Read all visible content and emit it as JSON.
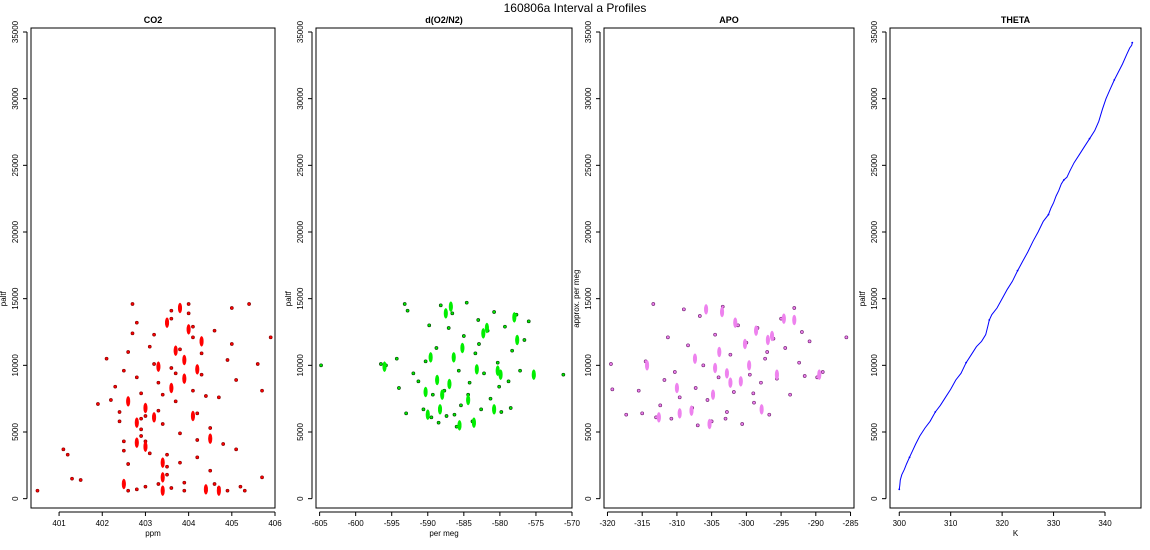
{
  "title": "160806a   Interval a Profiles",
  "chart_data": [
    {
      "type": "scatter",
      "title": "CO2",
      "xlabel": "ppm",
      "ylabel": "paltf",
      "xlim": [
        400.35,
        406.0
      ],
      "ylim": [
        -700,
        35300
      ],
      "xticks": [
        401,
        402,
        403,
        404,
        405,
        406
      ],
      "yticks": [
        0,
        5000,
        10000,
        15000,
        20000,
        25000,
        30000,
        35000
      ],
      "grid": false,
      "colors": {
        "fill": "#ff0000",
        "stroke": "#8b0000"
      },
      "points": [
        [
          400.5,
          600
        ],
        [
          401.1,
          3700
        ],
        [
          401.2,
          3300
        ],
        [
          401.3,
          1500
        ],
        [
          401.5,
          1400
        ],
        [
          401.9,
          7100
        ],
        [
          402.2,
          7400
        ],
        [
          402.1,
          10500
        ],
        [
          402.3,
          8400
        ],
        [
          402.4,
          6500
        ],
        [
          402.4,
          5800
        ],
        [
          402.5,
          4300
        ],
        [
          402.5,
          3600
        ],
        [
          402.6,
          2600
        ],
        [
          402.6,
          11000
        ],
        [
          402.7,
          12400
        ],
        [
          402.7,
          14600
        ],
        [
          402.8,
          13200
        ],
        [
          402.8,
          9100
        ],
        [
          402.9,
          7900
        ],
        [
          402.9,
          6000
        ],
        [
          402.9,
          4700
        ],
        [
          403.0,
          4300
        ],
        [
          403.1,
          3400
        ],
        [
          403.1,
          11400
        ],
        [
          403.2,
          10100
        ],
        [
          403.2,
          12300
        ],
        [
          403.3,
          8700
        ],
        [
          403.3,
          6600
        ],
        [
          403.4,
          5600
        ],
        [
          403.5,
          2400
        ],
        [
          403.5,
          1800
        ],
        [
          403.6,
          14100
        ],
        [
          403.6,
          13500
        ],
        [
          403.7,
          9400
        ],
        [
          403.7,
          7300
        ],
        [
          403.8,
          4900
        ],
        [
          403.8,
          2700
        ],
        [
          403.9,
          1200
        ],
        [
          403.9,
          600
        ],
        [
          404.0,
          14600
        ],
        [
          404.0,
          13900
        ],
        [
          404.1,
          12100
        ],
        [
          404.1,
          8100
        ],
        [
          404.2,
          6400
        ],
        [
          404.2,
          3100
        ],
        [
          404.3,
          10900
        ],
        [
          404.3,
          9300
        ],
        [
          404.4,
          7700
        ],
        [
          404.5,
          5300
        ],
        [
          404.5,
          2100
        ],
        [
          404.6,
          12600
        ],
        [
          404.6,
          1100
        ],
        [
          404.7,
          7600
        ],
        [
          404.7,
          800
        ],
        [
          404.8,
          4100
        ],
        [
          404.9,
          10400
        ],
        [
          405.0,
          14300
        ],
        [
          405.0,
          11600
        ],
        [
          405.1,
          8900
        ],
        [
          405.1,
          3700
        ],
        [
          405.3,
          600
        ],
        [
          405.4,
          14600
        ],
        [
          405.6,
          10100
        ],
        [
          405.7,
          8100
        ],
        [
          405.7,
          1600
        ],
        [
          405.9,
          12100
        ],
        [
          402.6,
          600
        ],
        [
          402.8,
          700
        ],
        [
          403.0,
          900
        ],
        [
          403.3,
          1100
        ],
        [
          403.6,
          800
        ],
        [
          404.4,
          600
        ],
        [
          404.9,
          600
        ],
        [
          405.2,
          900
        ],
        [
          402.9,
          5200
        ],
        [
          403.0,
          6200
        ],
        [
          403.4,
          7800
        ],
        [
          403.6,
          9800
        ],
        [
          403.8,
          11200
        ],
        [
          404.1,
          12900
        ],
        [
          403.5,
          3300
        ],
        [
          404.2,
          4400
        ],
        [
          402.5,
          9600
        ]
      ],
      "elongated_clusters": [
        [
          402.5,
          1100
        ],
        [
          402.6,
          7300
        ],
        [
          402.8,
          5700
        ],
        [
          402.8,
          4200
        ],
        [
          403.0,
          6800
        ],
        [
          403.0,
          3900
        ],
        [
          403.2,
          6100
        ],
        [
          403.3,
          9900
        ],
        [
          403.4,
          2700
        ],
        [
          403.4,
          1600
        ],
        [
          403.4,
          600
        ],
        [
          403.5,
          13200
        ],
        [
          403.6,
          8300
        ],
        [
          403.7,
          11100
        ],
        [
          403.8,
          14300
        ],
        [
          403.9,
          10400
        ],
        [
          403.9,
          9000
        ],
        [
          404.0,
          12700
        ],
        [
          404.1,
          6200
        ],
        [
          404.2,
          9700
        ],
        [
          404.3,
          11800
        ],
        [
          404.4,
          700
        ],
        [
          404.5,
          4500
        ],
        [
          404.7,
          600
        ]
      ]
    },
    {
      "type": "scatter",
      "title": "d(O2/N2)",
      "xlabel": "per meg",
      "ylabel": "paltf",
      "xlim": [
        -605.5,
        -570.0
      ],
      "ylim": [
        -700,
        35300
      ],
      "xticks": [
        -605,
        -600,
        -595,
        -590,
        -585,
        -580,
        -575,
        -570
      ],
      "yticks": [
        0,
        5000,
        10000,
        15000,
        20000,
        25000,
        30000,
        35000
      ],
      "grid": false,
      "colors": {
        "fill": "#00ee00",
        "stroke": "#004d00"
      },
      "points": [
        [
          -604.8,
          10000
        ],
        [
          -596.5,
          10100
        ],
        [
          -595.8,
          10000
        ],
        [
          -594.3,
          10500
        ],
        [
          -594.0,
          8300
        ],
        [
          -593.2,
          14600
        ],
        [
          -593.0,
          6400
        ],
        [
          -592.8,
          14100
        ],
        [
          -592.0,
          9400
        ],
        [
          -591.3,
          8800
        ],
        [
          -590.6,
          6700
        ],
        [
          -590.3,
          10300
        ],
        [
          -589.8,
          13000
        ],
        [
          -589.3,
          7800
        ],
        [
          -588.8,
          11300
        ],
        [
          -588.5,
          5700
        ],
        [
          -588.2,
          14500
        ],
        [
          -587.7,
          8100
        ],
        [
          -587.4,
          6200
        ],
        [
          -587.1,
          12800
        ],
        [
          -586.6,
          13900
        ],
        [
          -586.0,
          5400
        ],
        [
          -585.7,
          9600
        ],
        [
          -585.4,
          7000
        ],
        [
          -585.0,
          12200
        ],
        [
          -584.6,
          14700
        ],
        [
          -584.2,
          8700
        ],
        [
          -583.8,
          5800
        ],
        [
          -583.4,
          10900
        ],
        [
          -583.0,
          13400
        ],
        [
          -582.6,
          6700
        ],
        [
          -582.2,
          9400
        ],
        [
          -581.7,
          12600
        ],
        [
          -581.3,
          7500
        ],
        [
          -580.8,
          14000
        ],
        [
          -580.3,
          10200
        ],
        [
          -579.8,
          6500
        ],
        [
          -579.3,
          12900
        ],
        [
          -578.8,
          8800
        ],
        [
          -578.3,
          11100
        ],
        [
          -577.7,
          13800
        ],
        [
          -577.2,
          9600
        ],
        [
          -576.6,
          11900
        ],
        [
          -576.0,
          13300
        ],
        [
          -575.3,
          9200
        ],
        [
          -571.2,
          9300
        ],
        [
          -589.5,
          6100
        ],
        [
          -586.3,
          6300
        ],
        [
          -584.4,
          7800
        ],
        [
          -582.9,
          11600
        ],
        [
          -580.1,
          8400
        ],
        [
          -578.5,
          6800
        ]
      ],
      "elongated_clusters": [
        [
          -596.0,
          9900
        ],
        [
          -590.3,
          8000
        ],
        [
          -590.0,
          6300
        ],
        [
          -589.6,
          10600
        ],
        [
          -588.7,
          8900
        ],
        [
          -588.3,
          6700
        ],
        [
          -588.0,
          7800
        ],
        [
          -587.5,
          13900
        ],
        [
          -587.0,
          8600
        ],
        [
          -586.8,
          14400
        ],
        [
          -586.4,
          10600
        ],
        [
          -585.6,
          5500
        ],
        [
          -585.2,
          11300
        ],
        [
          -584.4,
          7400
        ],
        [
          -583.6,
          5700
        ],
        [
          -583.2,
          9700
        ],
        [
          -582.3,
          12400
        ],
        [
          -581.8,
          12800
        ],
        [
          -580.8,
          6700
        ],
        [
          -580.3,
          9600
        ],
        [
          -579.9,
          9300
        ],
        [
          -578.0,
          13600
        ],
        [
          -577.6,
          11900
        ],
        [
          -575.3,
          9300
        ]
      ]
    },
    {
      "type": "scatter",
      "title": "APO",
      "xlabel": "",
      "ylabel": "approx. per meg",
      "xlim": [
        -320.5,
        -284.5
      ],
      "ylim": [
        -700,
        35300
      ],
      "xticks": [
        -320,
        -315,
        -310,
        -305,
        -300,
        -295,
        -290,
        -285
      ],
      "yticks": [
        0,
        5000,
        10000,
        15000,
        20000,
        25000,
        30000,
        35000
      ],
      "grid": false,
      "colors": {
        "fill": "#ee82ee",
        "stroke": "#7a2a7a"
      },
      "points": [
        [
          -319.5,
          10100
        ],
        [
          -319.3,
          8200
        ],
        [
          -317.3,
          6300
        ],
        [
          -315.5,
          8100
        ],
        [
          -315.0,
          6400
        ],
        [
          -314.5,
          10300
        ],
        [
          -313.4,
          14600
        ],
        [
          -313.0,
          6100
        ],
        [
          -312.4,
          7000
        ],
        [
          -311.8,
          8900
        ],
        [
          -311.3,
          12100
        ],
        [
          -310.8,
          6000
        ],
        [
          -310.3,
          9500
        ],
        [
          -309.6,
          7600
        ],
        [
          -309.0,
          14200
        ],
        [
          -308.4,
          11500
        ],
        [
          -307.8,
          6800
        ],
        [
          -307.3,
          8300
        ],
        [
          -306.7,
          13700
        ],
        [
          -306.2,
          10000
        ],
        [
          -305.6,
          7400
        ],
        [
          -305.0,
          5800
        ],
        [
          -304.5,
          12300
        ],
        [
          -304.0,
          9100
        ],
        [
          -303.4,
          14400
        ],
        [
          -302.8,
          6500
        ],
        [
          -302.3,
          10800
        ],
        [
          -301.8,
          8000
        ],
        [
          -301.2,
          13000
        ],
        [
          -300.6,
          5600
        ],
        [
          -300.0,
          11700
        ],
        [
          -299.5,
          9300
        ],
        [
          -298.9,
          7200
        ],
        [
          -298.4,
          12800
        ],
        [
          -297.9,
          8700
        ],
        [
          -297.3,
          10500
        ],
        [
          -296.7,
          6300
        ],
        [
          -296.1,
          12000
        ],
        [
          -295.6,
          9000
        ],
        [
          -295.0,
          13500
        ],
        [
          -294.4,
          11300
        ],
        [
          -293.7,
          7800
        ],
        [
          -293.1,
          14300
        ],
        [
          -292.4,
          10200
        ],
        [
          -291.6,
          9200
        ],
        [
          -290.9,
          11800
        ],
        [
          -289.8,
          9100
        ],
        [
          -289.0,
          9500
        ],
        [
          -285.6,
          12100
        ],
        [
          -307.0,
          5500
        ],
        [
          -303.0,
          6000
        ],
        [
          -299.0,
          7900
        ],
        [
          -297.0,
          11000
        ],
        [
          -292.0,
          12500
        ]
      ],
      "elongated_clusters": [
        [
          -314.3,
          10000
        ],
        [
          -312.6,
          6100
        ],
        [
          -310.0,
          8300
        ],
        [
          -309.6,
          6400
        ],
        [
          -307.9,
          6600
        ],
        [
          -307.4,
          10500
        ],
        [
          -305.8,
          14200
        ],
        [
          -305.3,
          5600
        ],
        [
          -304.8,
          7800
        ],
        [
          -304.5,
          9800
        ],
        [
          -303.9,
          11000
        ],
        [
          -303.5,
          14000
        ],
        [
          -302.8,
          9400
        ],
        [
          -302.3,
          8700
        ],
        [
          -301.6,
          13200
        ],
        [
          -300.8,
          8800
        ],
        [
          -300.2,
          11600
        ],
        [
          -299.6,
          10000
        ],
        [
          -298.6,
          12600
        ],
        [
          -297.8,
          6700
        ],
        [
          -296.9,
          11900
        ],
        [
          -296.3,
          12200
        ],
        [
          -295.6,
          9300
        ],
        [
          -294.6,
          13500
        ],
        [
          -293.1,
          13400
        ],
        [
          -289.5,
          9300
        ]
      ]
    },
    {
      "type": "line",
      "title": "THETA",
      "xlabel": "K",
      "ylabel": "paltf",
      "xlim": [
        298.2,
        347.0
      ],
      "ylim": [
        -700,
        35300
      ],
      "xticks": [
        300,
        310,
        320,
        330,
        340
      ],
      "yticks": [
        0,
        5000,
        10000,
        15000,
        20000,
        25000,
        30000,
        35000
      ],
      "grid": false,
      "colors": {
        "line": "#0000ff"
      },
      "x": [
        300.0,
        300.1,
        300.2,
        300.5,
        301.0,
        301.4,
        302.0,
        302.6,
        303.2,
        304.0,
        305.0,
        306.0,
        307.0,
        308.0,
        309.0,
        310.0,
        311.0,
        312.0,
        313.0,
        314.0,
        315.0,
        316.0,
        316.8,
        317.2,
        317.5,
        318.0,
        319.0,
        320.0,
        321.0,
        322.0,
        323.0,
        324.0,
        325.0,
        326.0,
        327.0,
        328.0,
        329.0,
        329.5,
        330.0,
        330.5,
        331.0,
        331.5,
        332.0,
        332.6,
        333.2,
        334.0,
        335.0,
        336.0,
        337.0,
        338.0,
        338.8,
        339.5,
        340.2,
        341.0,
        341.8,
        342.6,
        343.4,
        344.2,
        344.8,
        345.2,
        345.3
      ],
      "y": [
        700,
        1000,
        1400,
        1800,
        2200,
        2600,
        3100,
        3600,
        4100,
        4700,
        5300,
        5800,
        6500,
        7000,
        7600,
        8200,
        8900,
        9400,
        10200,
        10800,
        11400,
        11800,
        12300,
        12900,
        13400,
        13800,
        14300,
        15000,
        15700,
        16300,
        17100,
        17800,
        18500,
        19300,
        20000,
        20800,
        21300,
        21800,
        22200,
        22700,
        23100,
        23600,
        23900,
        24100,
        24600,
        25200,
        25800,
        26400,
        27000,
        27600,
        28300,
        29200,
        30000,
        30700,
        31400,
        32000,
        32600,
        33300,
        33800,
        34000,
        34200
      ]
    }
  ]
}
